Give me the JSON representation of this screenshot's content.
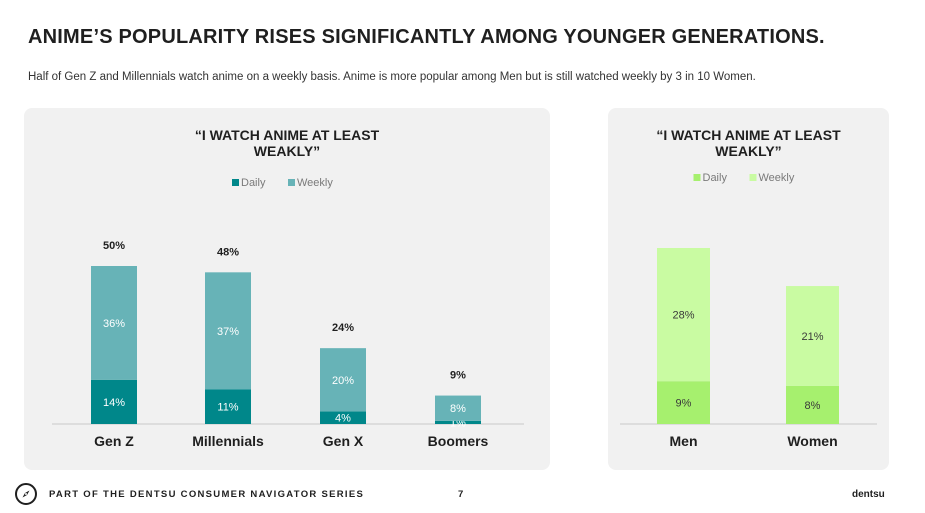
{
  "headline": "ANIME’S POPULARITY RISES SIGNIFICANTLY AMONG YOUNGER GENERATIONS.",
  "subtitle": "Half of Gen Z and Millennials watch anime on a weekly basis. Anime is more popular among Men but is still watched weekly by 3 in 10 Women.",
  "footer": {
    "series_text": "PART OF THE DENTSU CONSUMER NAVIGATOR SERIES",
    "page_number": "7",
    "brand": "dentsu",
    "logo_icon": "compass-icon"
  },
  "chart_data": [
    {
      "type": "bar",
      "stacked": true,
      "title_line1": "“I WATCH ANIME AT LEAST",
      "title_line2": "WEAKLY”",
      "categories": [
        "Gen Z",
        "Millennials",
        "Gen X",
        "Boomers"
      ],
      "series": [
        {
          "name": "Daily",
          "color": "#00878a",
          "values": [
            14,
            11,
            4,
            1
          ],
          "labels": [
            "14%",
            "11%",
            "4%",
            "1%"
          ]
        },
        {
          "name": "Weekly",
          "color": "#67b3b7",
          "values": [
            36,
            37,
            20,
            8
          ],
          "labels": [
            "36%",
            "37%",
            "20%",
            "8%"
          ]
        }
      ],
      "totals": [
        "50%",
        "48%",
        "24%",
        "9%"
      ],
      "total_values": [
        50,
        48,
        24,
        9
      ],
      "legend_position": "top-center",
      "ylim": [
        0,
        50
      ]
    },
    {
      "type": "bar",
      "stacked": true,
      "title_line1": "“I WATCH ANIME AT LEAST",
      "title_line2": "WEAKLY”",
      "categories": [
        "Men",
        "Women"
      ],
      "series": [
        {
          "name": "Daily",
          "color": "#a6f06e",
          "values": [
            9,
            8
          ],
          "labels": [
            "9%",
            "8%"
          ]
        },
        {
          "name": "Weekly",
          "color": "#c9fba2",
          "values": [
            28,
            21
          ],
          "labels": [
            "28%",
            "21%"
          ]
        }
      ],
      "legend_position": "top-center",
      "ylim": [
        0,
        37
      ]
    }
  ]
}
